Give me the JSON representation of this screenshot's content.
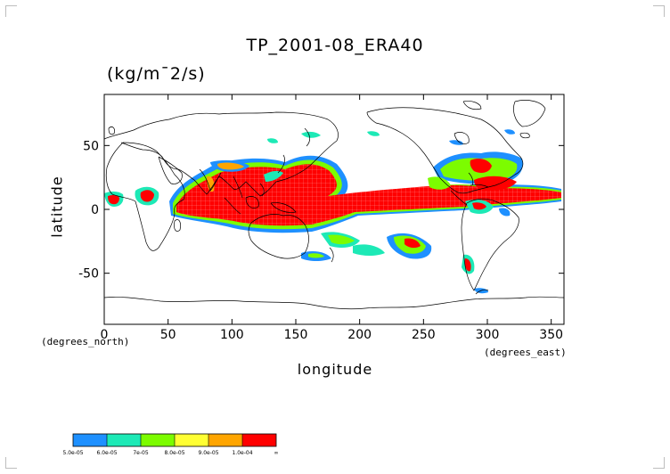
{
  "title": "TP_2001-08_ERA40",
  "units": "(kg/m¯2/s)",
  "y_axis": {
    "label": "latitude",
    "ticks": [
      {
        "value": 50,
        "label": "50"
      },
      {
        "value": 0,
        "label": "0"
      },
      {
        "value": -50,
        "label": "-50"
      }
    ],
    "range": [
      -90,
      90
    ]
  },
  "x_axis": {
    "label": "longitude",
    "ticks": [
      {
        "value": 0,
        "label": "0"
      },
      {
        "value": 50,
        "label": "50"
      },
      {
        "value": 100,
        "label": "100"
      },
      {
        "value": 150,
        "label": "150"
      },
      {
        "value": 200,
        "label": "200"
      },
      {
        "value": 250,
        "label": "250"
      },
      {
        "value": 300,
        "label": "300"
      },
      {
        "value": 350,
        "label": "350"
      }
    ],
    "range": [
      0,
      360
    ],
    "sub_left": "(degrees_north)",
    "sub_right": "(degrees_east)"
  },
  "colorbar": {
    "colors": [
      "#1e90ff",
      "#1de9b6",
      "#7cfc00",
      "#ffff33",
      "#ffa500",
      "#ff0000"
    ],
    "labels": [
      "5.0e-05",
      "6.0e-05",
      "7e-05",
      "8.0e-05",
      "9.0e-05",
      "1.0e-04",
      "∞"
    ]
  }
}
